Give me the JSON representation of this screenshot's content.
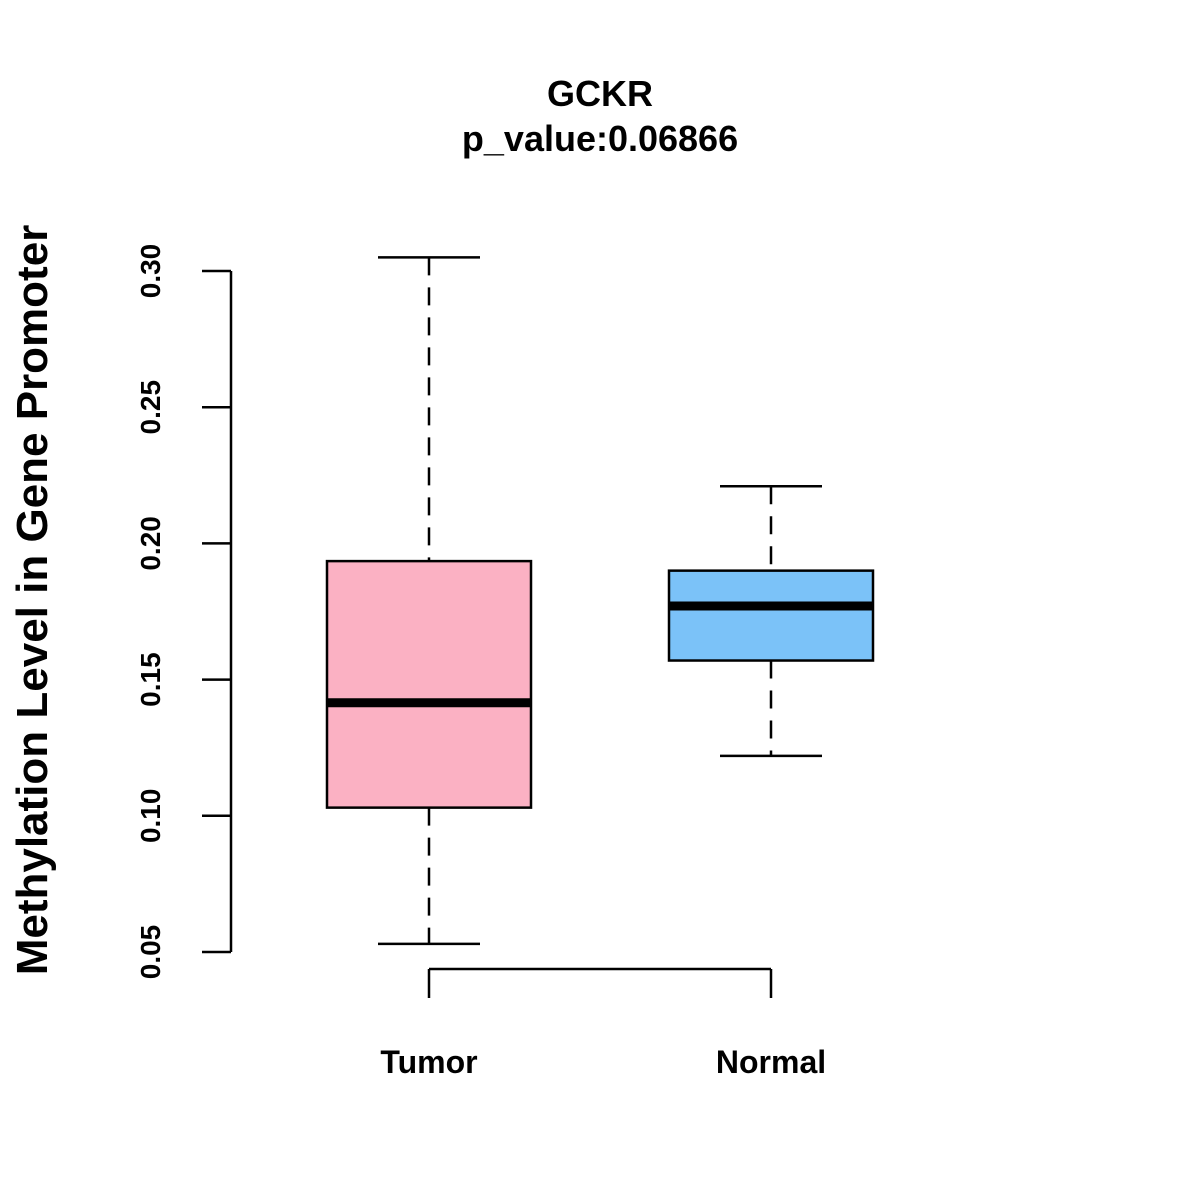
{
  "chart_data": {
    "type": "boxplot",
    "title": "GCKR",
    "subtitle": "p_value:0.06866",
    "xlabel": "",
    "ylabel": "Methylation Level in Gene Promoter",
    "ylim": [
      0.05,
      0.3
    ],
    "yticks": [
      0.05,
      0.1,
      0.15,
      0.2,
      0.25,
      0.3
    ],
    "ytick_labels": [
      "0.05",
      "0.10",
      "0.15",
      "0.20",
      "0.25",
      "0.30"
    ],
    "categories": [
      "Tumor",
      "Normal"
    ],
    "series": [
      {
        "name": "Tumor",
        "color": "#FBB1C3",
        "min": 0.053,
        "q1": 0.103,
        "median": 0.1415,
        "q3": 0.1935,
        "max": 0.305
      },
      {
        "name": "Normal",
        "color": "#7BC2F8",
        "min": 0.122,
        "q1": 0.157,
        "median": 0.177,
        "q3": 0.19,
        "max": 0.221
      }
    ],
    "grid": false
  }
}
